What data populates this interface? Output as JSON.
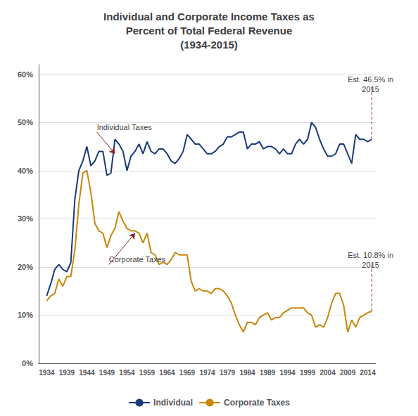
{
  "chart_data": {
    "type": "line",
    "title": "Individual and Corporate Income Taxes as\nPercent of Total Federal Revenue\n(1934-2015)",
    "x": [
      1934,
      1935,
      1936,
      1937,
      1938,
      1939,
      1940,
      1941,
      1942,
      1943,
      1944,
      1945,
      1946,
      1947,
      1948,
      1949,
      1950,
      1951,
      1952,
      1953,
      1954,
      1955,
      1956,
      1957,
      1958,
      1959,
      1960,
      1961,
      1962,
      1963,
      1964,
      1965,
      1966,
      1967,
      1968,
      1969,
      1970,
      1971,
      1972,
      1973,
      1974,
      1975,
      1976,
      1977,
      1978,
      1979,
      1980,
      1981,
      1982,
      1983,
      1984,
      1985,
      1986,
      1987,
      1988,
      1989,
      1990,
      1991,
      1992,
      1993,
      1994,
      1995,
      1996,
      1997,
      1998,
      1999,
      2000,
      2001,
      2002,
      2003,
      2004,
      2005,
      2006,
      2007,
      2008,
      2009,
      2010,
      2011,
      2012,
      2013,
      2014,
      2015
    ],
    "series": [
      {
        "name": "Individual",
        "color": "#1a3a7a",
        "values": [
          14.0,
          16.5,
          19.5,
          20.5,
          19.5,
          19.0,
          20.9,
          34.0,
          40.0,
          42.0,
          45.0,
          41.0,
          42.0,
          44.0,
          44.0,
          39.0,
          39.5,
          46.5,
          45.5,
          44.0,
          40.0,
          43.0,
          44.0,
          45.5,
          43.5,
          46.0,
          44.0,
          43.5,
          44.5,
          44.5,
          43.5,
          42.0,
          41.5,
          42.5,
          44.0,
          47.5,
          46.5,
          45.5,
          45.5,
          44.5,
          43.5,
          43.5,
          44.0,
          45.0,
          45.5,
          47.0,
          47.0,
          47.5,
          48.0,
          48.0,
          44.5,
          45.5,
          45.5,
          46.0,
          44.5,
          45.0,
          45.0,
          44.5,
          43.5,
          44.5,
          43.5,
          43.5,
          45.5,
          46.5,
          45.5,
          46.5,
          50.0,
          49.0,
          46.5,
          44.5,
          43.0,
          43.0,
          43.5,
          45.5,
          45.5,
          43.5,
          41.5,
          47.5,
          46.5,
          46.5,
          46.0,
          46.5
        ]
      },
      {
        "name": "Corporate Taxes",
        "color": "#c8860a",
        "values": [
          13.0,
          14.0,
          14.5,
          17.5,
          16.0,
          18.0,
          18.0,
          23.5,
          33.0,
          39.5,
          40.0,
          35.5,
          29.0,
          27.5,
          27.0,
          24.0,
          26.5,
          28.0,
          31.5,
          29.5,
          28.0,
          27.5,
          27.5,
          27.0,
          25.0,
          27.0,
          23.0,
          22.5,
          20.5,
          21.0,
          20.5,
          21.5,
          23.0,
          22.5,
          22.5,
          22.5,
          17.0,
          15.0,
          15.5,
          15.0,
          15.0,
          14.5,
          15.5,
          15.5,
          15.0,
          14.0,
          12.5,
          10.0,
          8.0,
          6.5,
          8.5,
          8.5,
          8.0,
          9.5,
          10.0,
          10.5,
          9.0,
          9.5,
          9.5,
          10.5,
          11.0,
          11.5,
          11.5,
          11.5,
          11.5,
          10.5,
          10.0,
          7.5,
          8.0,
          7.5,
          9.5,
          12.5,
          14.5,
          14.5,
          12.0,
          6.5,
          9.0,
          7.5,
          9.5,
          10.0,
          10.5,
          10.8
        ]
      }
    ],
    "xlim": [
      1932,
      2016
    ],
    "xticks": [
      1934,
      1939,
      1944,
      1949,
      1954,
      1959,
      1964,
      1969,
      1974,
      1979,
      1984,
      1989,
      1994,
      1999,
      2004,
      2009,
      2014
    ],
    "ylim": [
      0,
      62
    ],
    "yticks": [
      {
        "value": 0,
        "label": "0%"
      },
      {
        "value": 10,
        "label": "10%"
      },
      {
        "value": 20,
        "label": "20%"
      },
      {
        "value": 30,
        "label": "30%"
      },
      {
        "value": 40,
        "label": "40%"
      },
      {
        "value": 50,
        "label": "50%"
      },
      {
        "value": 60,
        "label": "60%"
      }
    ],
    "grid": true,
    "legend": "bottom",
    "annotations": [
      {
        "text": "Individual Taxes",
        "text_x": 1946.5,
        "text_y": 48.0,
        "line": [
          [
            1946.5,
            48.0
          ],
          [
            1951,
            43.5
          ]
        ],
        "line_style": "arrow",
        "color": "#8b2020"
      },
      {
        "text": "Corporate Taxes",
        "text_x": 1949.5,
        "text_y": 20.5,
        "line": [
          [
            1949.5,
            20.5
          ],
          [
            1956,
            27.0
          ]
        ],
        "line_style": "arrow",
        "color": "#8b2020"
      },
      {
        "text": "Est. 46.5% in\n2015",
        "text_x": 2014.7,
        "text_y": 60.0,
        "line": [
          [
            2015,
            46.5
          ],
          [
            2015,
            57.5
          ]
        ],
        "line_style": "dashed",
        "color": "#8b2020"
      },
      {
        "text": "Est. 10.8% in\n2015",
        "text_x": 2014.7,
        "text_y": 23.5,
        "line": [
          [
            2015,
            10.8
          ],
          [
            2015,
            20.5
          ]
        ],
        "line_style": "dashed",
        "color": "#8b2020"
      }
    ]
  }
}
